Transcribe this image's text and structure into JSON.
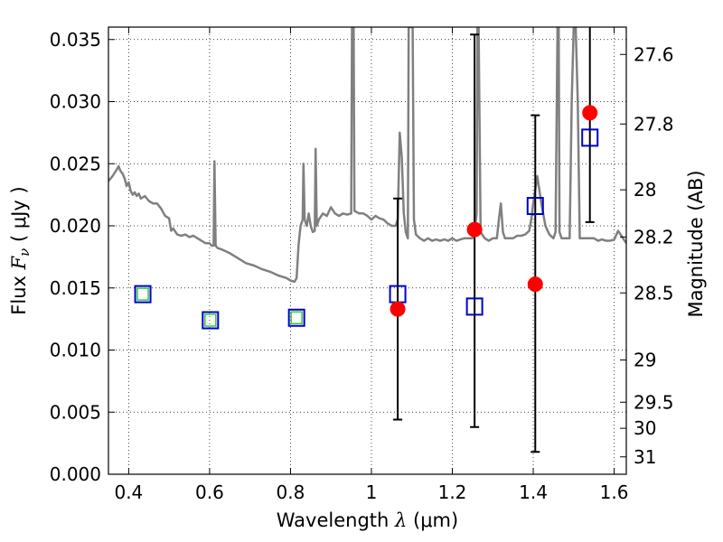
{
  "chart_data": {
    "type": "scatter",
    "title": "",
    "xlabel": {
      "prefix": "Wavelength  ",
      "symbol": "λ",
      "unit": " (μm)"
    },
    "ylabel": {
      "prefix": "Flux  ",
      "symbol": "F",
      "subscript": "ν",
      "unit": "  ( μJy )"
    },
    "y2label": "Magnitude (AB)",
    "xlim": [
      0.35,
      1.63
    ],
    "ylim": [
      0.0,
      0.036
    ],
    "grid": true,
    "x_ticks": [
      {
        "value": 0.4,
        "label": "0.4"
      },
      {
        "value": 0.6,
        "label": "0.6"
      },
      {
        "value": 0.8,
        "label": "0.8"
      },
      {
        "value": 1.0,
        "label": "1"
      },
      {
        "value": 1.2,
        "label": "1.2"
      },
      {
        "value": 1.4,
        "label": "1.4"
      },
      {
        "value": 1.6,
        "label": "1.6"
      }
    ],
    "y_ticks": [
      {
        "value": 0.0,
        "label": "0.000"
      },
      {
        "value": 0.005,
        "label": "0.005"
      },
      {
        "value": 0.01,
        "label": "0.010"
      },
      {
        "value": 0.015,
        "label": "0.015"
      },
      {
        "value": 0.02,
        "label": "0.020"
      },
      {
        "value": 0.025,
        "label": "0.025"
      },
      {
        "value": 0.03,
        "label": "0.030"
      },
      {
        "value": 0.035,
        "label": "0.035"
      }
    ],
    "y2_ticks": [
      {
        "flux": 0.0338,
        "label": "27.6"
      },
      {
        "flux": 0.0282,
        "label": "27.8"
      },
      {
        "flux": 0.0229,
        "label": "28"
      },
      {
        "flux": 0.0191,
        "label": "28.2"
      },
      {
        "flux": 0.0146,
        "label": "28.5"
      },
      {
        "flux": 0.0092,
        "label": "29"
      },
      {
        "flux": 0.0058,
        "label": "29.5"
      },
      {
        "flux": 0.0037,
        "label": "30"
      },
      {
        "flux": 0.0014,
        "label": "31"
      }
    ],
    "series": [
      {
        "kind": "spectrum",
        "color": "#808080",
        "points": [
          [
            0.35,
            0.0236
          ],
          [
            0.36,
            0.024
          ],
          [
            0.37,
            0.0245
          ],
          [
            0.375,
            0.0248
          ],
          [
            0.38,
            0.0244
          ],
          [
            0.385,
            0.0242
          ],
          [
            0.39,
            0.0238
          ],
          [
            0.395,
            0.0232
          ],
          [
            0.4,
            0.0235
          ],
          [
            0.405,
            0.0228
          ],
          [
            0.41,
            0.0225
          ],
          [
            0.415,
            0.0227
          ],
          [
            0.42,
            0.0224
          ],
          [
            0.425,
            0.0226
          ],
          [
            0.43,
            0.0222
          ],
          [
            0.44,
            0.0224
          ],
          [
            0.45,
            0.022
          ],
          [
            0.46,
            0.0218
          ],
          [
            0.47,
            0.0218
          ],
          [
            0.48,
            0.0214
          ],
          [
            0.49,
            0.0208
          ],
          [
            0.5,
            0.0206
          ],
          [
            0.505,
            0.0196
          ],
          [
            0.51,
            0.0198
          ],
          [
            0.52,
            0.0193
          ],
          [
            0.53,
            0.0192
          ],
          [
            0.54,
            0.0193
          ],
          [
            0.55,
            0.0191
          ],
          [
            0.56,
            0.0192
          ],
          [
            0.57,
            0.019
          ],
          [
            0.58,
            0.0188
          ],
          [
            0.59,
            0.0186
          ],
          [
            0.6,
            0.0186
          ],
          [
            0.605,
            0.0184
          ],
          [
            0.61,
            0.0184
          ],
          [
            0.612,
            0.0252
          ],
          [
            0.615,
            0.0184
          ],
          [
            0.62,
            0.0182
          ],
          [
            0.63,
            0.0181
          ],
          [
            0.65,
            0.0178
          ],
          [
            0.67,
            0.0174
          ],
          [
            0.69,
            0.017
          ],
          [
            0.71,
            0.0168
          ],
          [
            0.73,
            0.0165
          ],
          [
            0.75,
            0.0163
          ],
          [
            0.77,
            0.016
          ],
          [
            0.79,
            0.0158
          ],
          [
            0.8,
            0.0156
          ],
          [
            0.81,
            0.0155
          ],
          [
            0.815,
            0.0158
          ],
          [
            0.82,
            0.0185
          ],
          [
            0.825,
            0.02
          ],
          [
            0.83,
            0.0205
          ],
          [
            0.832,
            0.025
          ],
          [
            0.835,
            0.0205
          ],
          [
            0.84,
            0.02
          ],
          [
            0.845,
            0.021
          ],
          [
            0.85,
            0.02
          ],
          [
            0.855,
            0.0195
          ],
          [
            0.86,
            0.0196
          ],
          [
            0.862,
            0.0262
          ],
          [
            0.865,
            0.02
          ],
          [
            0.87,
            0.0205
          ],
          [
            0.88,
            0.021
          ],
          [
            0.89,
            0.0208
          ],
          [
            0.9,
            0.0215
          ],
          [
            0.91,
            0.021
          ],
          [
            0.92,
            0.0208
          ],
          [
            0.93,
            0.021
          ],
          [
            0.94,
            0.0209
          ],
          [
            0.95,
            0.021
          ],
          [
            0.952,
            0.036
          ],
          [
            0.956,
            0.036
          ],
          [
            0.958,
            0.0212
          ],
          [
            0.97,
            0.021
          ],
          [
            0.98,
            0.021
          ],
          [
            0.99,
            0.0208
          ],
          [
            1.0,
            0.0205
          ],
          [
            1.01,
            0.0208
          ],
          [
            1.02,
            0.0206
          ],
          [
            1.03,
            0.0205
          ],
          [
            1.04,
            0.0202
          ],
          [
            1.05,
            0.02
          ],
          [
            1.06,
            0.02
          ],
          [
            1.065,
            0.0205
          ],
          [
            1.07,
            0.0275
          ],
          [
            1.075,
            0.0255
          ],
          [
            1.08,
            0.021
          ],
          [
            1.085,
            0.0195
          ],
          [
            1.09,
            0.019
          ],
          [
            1.092,
            0.036
          ],
          [
            1.102,
            0.036
          ],
          [
            1.105,
            0.0205
          ],
          [
            1.11,
            0.0193
          ],
          [
            1.12,
            0.019
          ],
          [
            1.13,
            0.0188
          ],
          [
            1.14,
            0.019
          ],
          [
            1.15,
            0.0188
          ],
          [
            1.16,
            0.0189
          ],
          [
            1.17,
            0.0188
          ],
          [
            1.18,
            0.0189
          ],
          [
            1.19,
            0.0188
          ],
          [
            1.2,
            0.019
          ],
          [
            1.21,
            0.0188
          ],
          [
            1.22,
            0.0189
          ],
          [
            1.23,
            0.019
          ],
          [
            1.24,
            0.019
          ],
          [
            1.25,
            0.019
          ],
          [
            1.255,
            0.0195
          ],
          [
            1.26,
            0.021
          ],
          [
            1.262,
            0.036
          ],
          [
            1.265,
            0.036
          ],
          [
            1.27,
            0.0195
          ],
          [
            1.28,
            0.019
          ],
          [
            1.29,
            0.0188
          ],
          [
            1.3,
            0.019
          ],
          [
            1.31,
            0.019
          ],
          [
            1.315,
            0.0205
          ],
          [
            1.32,
            0.0218
          ],
          [
            1.325,
            0.0195
          ],
          [
            1.33,
            0.019
          ],
          [
            1.34,
            0.019
          ],
          [
            1.35,
            0.019
          ],
          [
            1.36,
            0.0192
          ],
          [
            1.37,
            0.0192
          ],
          [
            1.38,
            0.0193
          ],
          [
            1.39,
            0.0196
          ],
          [
            1.395,
            0.0205
          ],
          [
            1.4,
            0.0218
          ],
          [
            1.41,
            0.024
          ],
          [
            1.42,
            0.0218
          ],
          [
            1.43,
            0.02
          ],
          [
            1.44,
            0.0193
          ],
          [
            1.45,
            0.019
          ],
          [
            1.455,
            0.0195
          ],
          [
            1.46,
            0.036
          ],
          [
            1.463,
            0.036
          ],
          [
            1.465,
            0.0195
          ],
          [
            1.47,
            0.019
          ],
          [
            1.48,
            0.019
          ],
          [
            1.49,
            0.019
          ],
          [
            1.495,
            0.03
          ],
          [
            1.5,
            0.036
          ],
          [
            1.505,
            0.036
          ],
          [
            1.51,
            0.03
          ],
          [
            1.515,
            0.019
          ],
          [
            1.52,
            0.019
          ],
          [
            1.53,
            0.019
          ],
          [
            1.54,
            0.019
          ],
          [
            1.55,
            0.019
          ],
          [
            1.56,
            0.0188
          ],
          [
            1.57,
            0.0189
          ],
          [
            1.58,
            0.0188
          ],
          [
            1.59,
            0.0188
          ],
          [
            1.6,
            0.0189
          ],
          [
            1.61,
            0.0196
          ],
          [
            1.62,
            0.0191
          ],
          [
            1.63,
            0.0186
          ]
        ]
      },
      {
        "kind": "model",
        "marker": "open-square",
        "color": "#0000cc",
        "points": [
          [
            0.435,
            0.0145
          ],
          [
            0.602,
            0.0124
          ],
          [
            0.815,
            0.0126
          ],
          [
            1.065,
            0.0145
          ],
          [
            1.255,
            0.0135
          ],
          [
            1.405,
            0.0216
          ],
          [
            1.54,
            0.0271
          ]
        ]
      },
      {
        "kind": "model-inner",
        "marker": "open-square",
        "color": "#32cd32",
        "points": [
          [
            0.435,
            0.0145
          ],
          [
            0.602,
            0.0124
          ],
          [
            0.815,
            0.0126
          ]
        ]
      },
      {
        "kind": "observed",
        "marker": "circle",
        "color": "#ff0000",
        "points": [
          [
            1.065,
            0.0133
          ],
          [
            1.255,
            0.0197
          ],
          [
            1.405,
            0.0153
          ],
          [
            1.54,
            0.0291
          ]
        ],
        "errors": [
          [
            0.0044,
            0.0222
          ],
          [
            0.0038,
            0.0354
          ],
          [
            0.0018,
            0.0289
          ],
          [
            0.0203,
            0.036
          ]
        ]
      }
    ]
  }
}
